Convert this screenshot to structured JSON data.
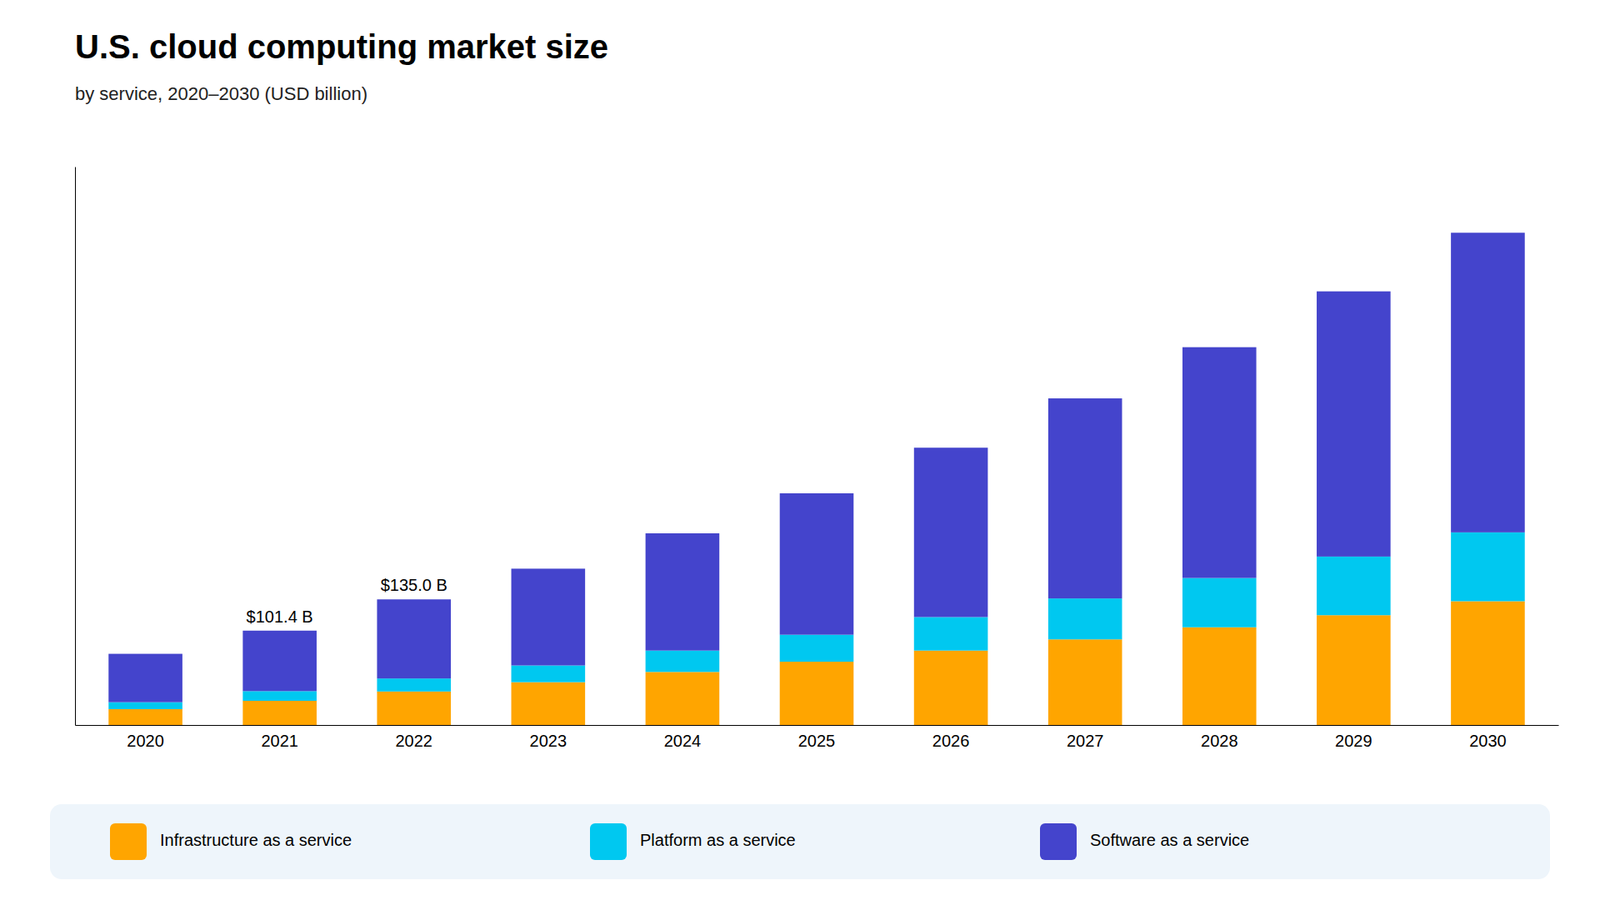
{
  "chart_data": {
    "type": "bar",
    "stacked": true,
    "title": "U.S. cloud computing market size",
    "subtitle": "by service, 2020–2030 (USD billion)",
    "categories": [
      "2020",
      "2021",
      "2022",
      "2023",
      "2024",
      "2025",
      "2026",
      "2027",
      "2028",
      "2029",
      "2030"
    ],
    "series": [
      {
        "name": "Infrastructure as a service",
        "color": "#FFA500",
        "values": [
          17.0,
          26.0,
          36.0,
          46.0,
          57.0,
          68.0,
          80.0,
          92.0,
          105.0,
          118.0,
          133.0
        ]
      },
      {
        "name": "Platform as a service",
        "color": "#00C8F0",
        "values": [
          7.5,
          10.4,
          14.0,
          18.0,
          23.0,
          29.0,
          36.0,
          44.0,
          53.0,
          63.0,
          74.0
        ]
      },
      {
        "name": "Software as a service",
        "color": "#4444CC",
        "values": [
          52.0,
          65.0,
          85.0,
          104.0,
          126.0,
          152.0,
          182.0,
          215.0,
          248.0,
          285.0,
          322.0
        ]
      }
    ],
    "annotations": [
      {
        "x": "2021",
        "text": "$101.4 B"
      },
      {
        "x": "2022",
        "text": "$135.0 B"
      }
    ],
    "ylim": [
      0,
      600
    ],
    "tick_labels": "x",
    "grid": false,
    "legend": "bottom"
  }
}
